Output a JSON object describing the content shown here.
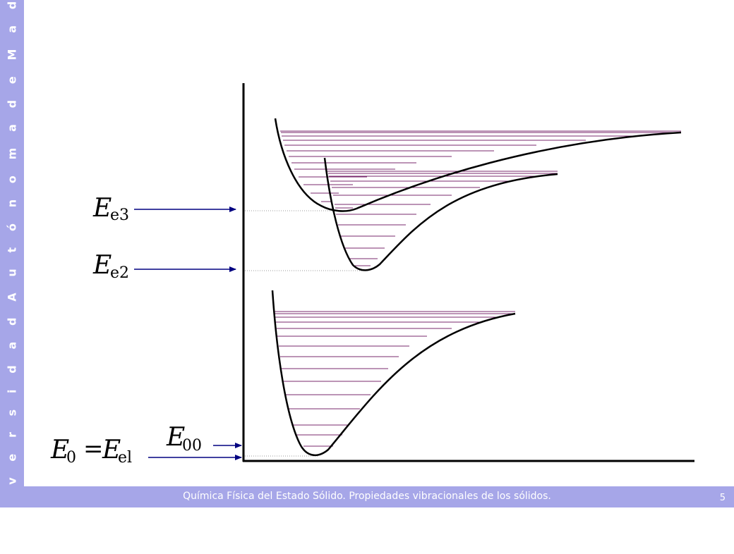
{
  "sidebar": {
    "text": "U n i v e r s i d a d   A u t ó n o m a   d e   M a d r i d"
  },
  "footer": {
    "text": "Química Física del Estado Sólido. Propiedades vibracionales de los sólidos.",
    "page_number": "5"
  },
  "labels": {
    "e3": {
      "main": "E",
      "sub": "e3"
    },
    "e2": {
      "main": "E",
      "sub": "e2"
    },
    "e00": {
      "main": "E",
      "sub": "00"
    },
    "e0": {
      "main": "E",
      "sub": "0",
      "eq": "=",
      "main2": "E",
      "sub2": "el"
    }
  },
  "colors": {
    "sidebar": "#a6a6e8",
    "levels": "#7a2a6e",
    "arrow": "#000080",
    "curve": "#000000"
  }
}
